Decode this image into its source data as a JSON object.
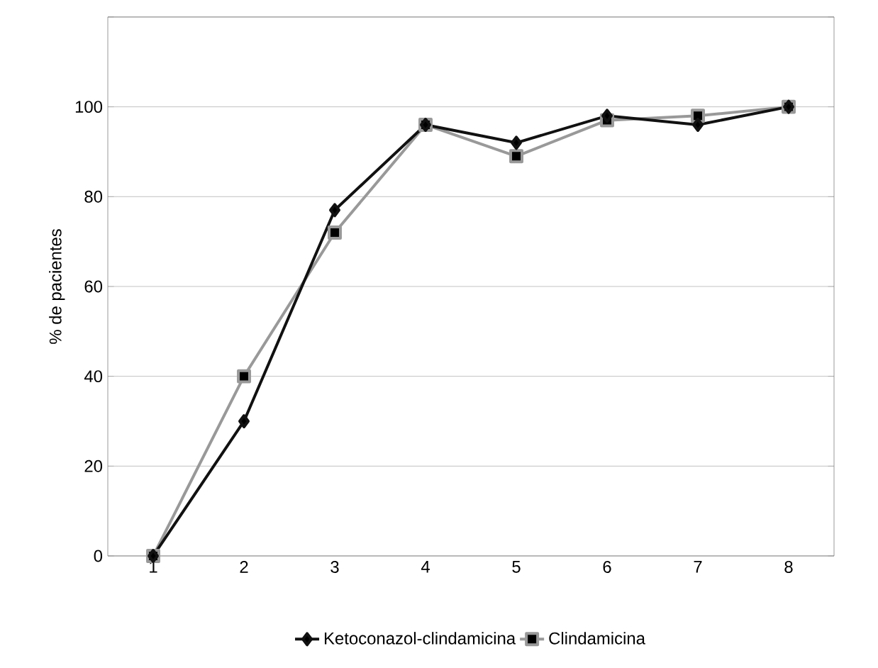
{
  "chart_data": {
    "type": "line",
    "ylabel": "% de pacientes",
    "categories": [
      "1",
      "2",
      "3",
      "4",
      "5",
      "6",
      "7",
      "8"
    ],
    "series": [
      {
        "name": "Ketoconazol-clindamicina",
        "color": "#111111",
        "marker": "diamond",
        "values": [
          0,
          30,
          77,
          96,
          92,
          98,
          96,
          100
        ]
      },
      {
        "name": "Clindamicina",
        "color": "#999999",
        "marker": "square",
        "values": [
          0,
          40,
          72,
          96,
          89,
          97,
          98,
          100
        ]
      }
    ],
    "ylim": [
      0,
      120
    ],
    "yticks": [
      0,
      20,
      40,
      60,
      80,
      100,
      {
        "value": 120,
        "label": null
      }
    ],
    "grid": "y",
    "legend": "bottom",
    "line_style": "solid"
  }
}
